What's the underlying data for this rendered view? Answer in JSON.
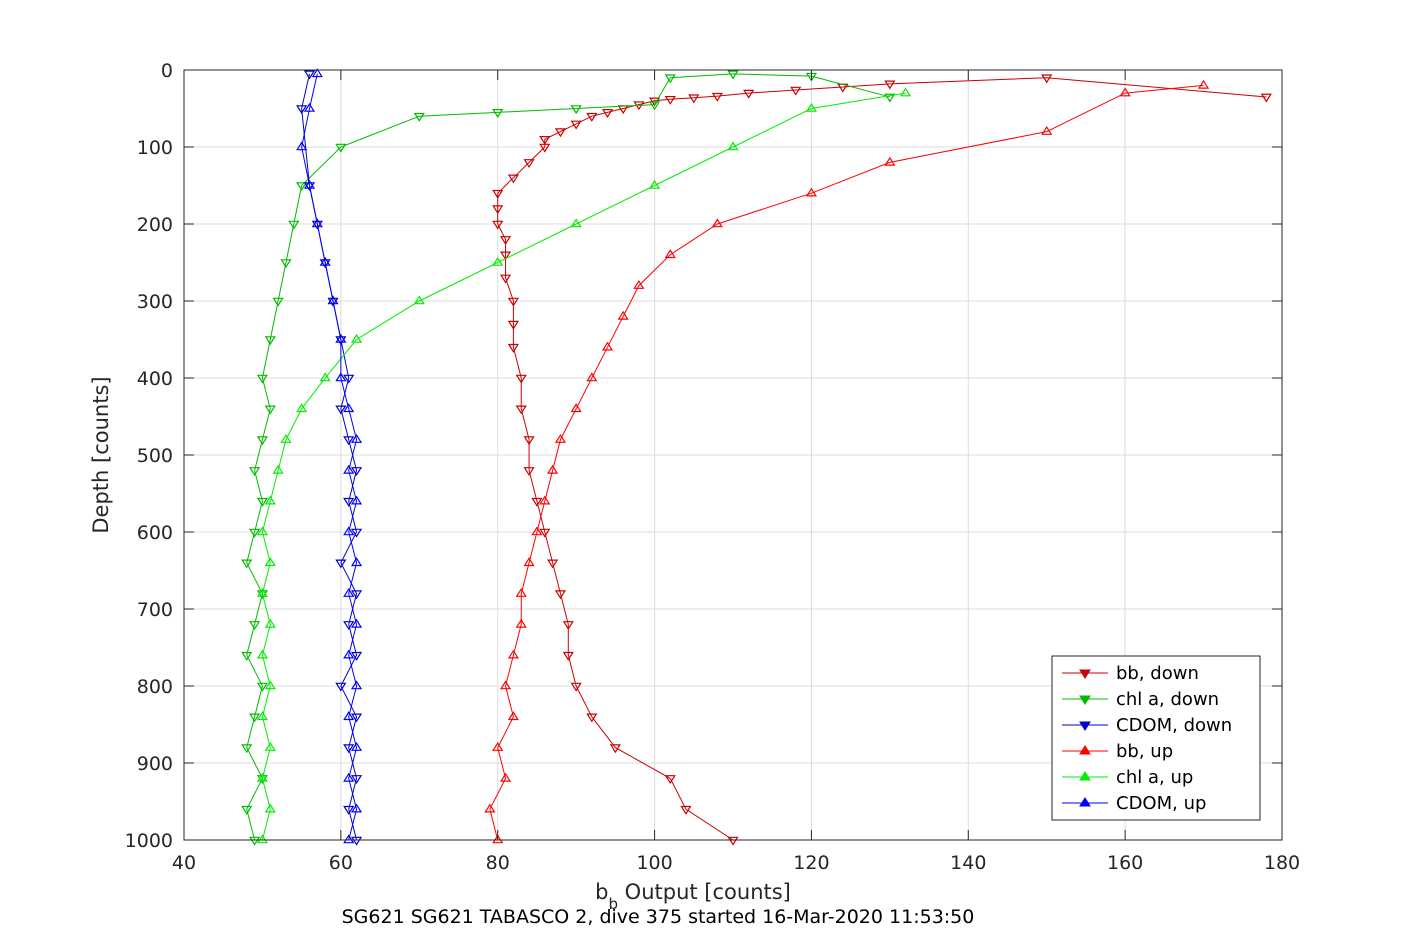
{
  "chart_data": {
    "type": "scatter",
    "title": "",
    "xlabel_main": "b",
    "xlabel_sub": "b",
    "xlabel_rest": " Output [counts]",
    "ylabel": "Depth [counts]",
    "caption": "SG621 SG621 TABASCO 2, dive 375 started 16-Mar-2020 11:53:50",
    "xlim": [
      40,
      180
    ],
    "ylim": [
      0,
      1000
    ],
    "y_reversed": true,
    "grid": true,
    "legend_position": "bottom-right",
    "xticks": [
      40,
      60,
      80,
      100,
      120,
      140,
      160,
      180
    ],
    "yticks": [
      0,
      100,
      200,
      300,
      400,
      500,
      600,
      700,
      800,
      900,
      1000
    ],
    "series": [
      {
        "name": "bb, down",
        "color": "#cc0000",
        "marker": "triangle-down",
        "x": [
          110,
          104,
          102,
          95,
          92,
          90,
          89,
          89,
          88,
          87,
          86,
          85,
          84,
          84,
          83,
          83,
          82,
          82,
          82,
          81,
          81,
          81,
          80,
          80,
          80,
          82,
          84,
          86,
          86,
          88,
          90,
          92,
          94,
          96,
          98,
          100,
          102,
          105,
          108,
          112,
          118,
          124,
          130,
          150,
          178
        ],
        "y": [
          1000,
          960,
          920,
          880,
          840,
          800,
          760,
          720,
          680,
          640,
          600,
          560,
          520,
          480,
          440,
          400,
          360,
          330,
          300,
          270,
          240,
          220,
          200,
          180,
          160,
          140,
          120,
          100,
          90,
          80,
          70,
          60,
          55,
          50,
          45,
          40,
          38,
          36,
          34,
          30,
          26,
          22,
          18,
          10,
          35
        ]
      },
      {
        "name": "chl a, down",
        "color": "#00bb00",
        "marker": "triangle-down",
        "x": [
          49,
          48,
          50,
          48,
          49,
          50,
          48,
          49,
          50,
          48,
          49,
          50,
          49,
          50,
          51,
          50,
          51,
          52,
          53,
          54,
          55,
          60,
          70,
          80,
          90,
          100,
          102,
          110,
          120,
          130
        ],
        "y": [
          1000,
          960,
          920,
          880,
          840,
          800,
          760,
          720,
          680,
          640,
          600,
          560,
          520,
          480,
          440,
          400,
          350,
          300,
          250,
          200,
          150,
          100,
          60,
          55,
          50,
          45,
          10,
          5,
          8,
          35
        ]
      },
      {
        "name": "CDOM, down",
        "color": "#0000cc",
        "marker": "triangle-down",
        "x": [
          62,
          61,
          62,
          61,
          62,
          60,
          62,
          61,
          62,
          60,
          62,
          61,
          62,
          61,
          60,
          61,
          60,
          59,
          58,
          57,
          56,
          55,
          56
        ],
        "y": [
          1000,
          960,
          920,
          880,
          840,
          800,
          760,
          720,
          680,
          640,
          600,
          560,
          520,
          480,
          440,
          400,
          350,
          300,
          250,
          200,
          150,
          50,
          5
        ]
      },
      {
        "name": "bb, up",
        "color": "#ff0000",
        "marker": "triangle-up",
        "x": [
          80,
          79,
          81,
          80,
          82,
          81,
          82,
          83,
          83,
          84,
          85,
          86,
          87,
          88,
          90,
          92,
          94,
          96,
          98,
          102,
          108,
          120,
          130,
          150,
          160,
          170
        ],
        "y": [
          1000,
          960,
          920,
          880,
          840,
          800,
          760,
          720,
          680,
          640,
          600,
          560,
          520,
          480,
          440,
          400,
          360,
          320,
          280,
          240,
          200,
          160,
          120,
          80,
          30,
          20
        ]
      },
      {
        "name": "chl a, up",
        "color": "#00ee00",
        "marker": "triangle-up",
        "x": [
          50,
          51,
          50,
          51,
          50,
          51,
          50,
          51,
          50,
          51,
          50,
          51,
          52,
          53,
          55,
          58,
          62,
          70,
          80,
          90,
          100,
          110,
          120,
          132
        ],
        "y": [
          1000,
          960,
          920,
          880,
          840,
          800,
          760,
          720,
          680,
          640,
          600,
          560,
          520,
          480,
          440,
          400,
          350,
          300,
          250,
          200,
          150,
          100,
          50,
          30
        ]
      },
      {
        "name": "CDOM, up",
        "color": "#0000ff",
        "marker": "triangle-up",
        "x": [
          61,
          62,
          61,
          62,
          61,
          62,
          61,
          62,
          61,
          62,
          61,
          62,
          61,
          62,
          61,
          60,
          60,
          59,
          58,
          57,
          56,
          55,
          56,
          57
        ],
        "y": [
          1000,
          960,
          920,
          880,
          840,
          800,
          760,
          720,
          680,
          640,
          600,
          560,
          520,
          480,
          440,
          400,
          350,
          300,
          250,
          200,
          150,
          100,
          50,
          5
        ]
      }
    ]
  }
}
